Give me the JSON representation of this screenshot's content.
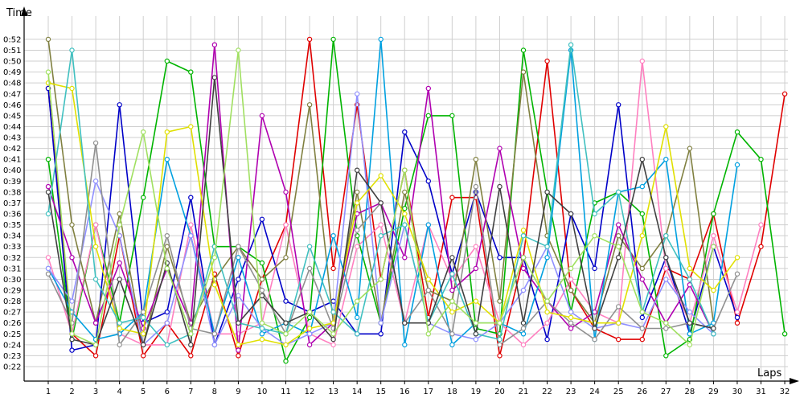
{
  "chart_data": {
    "type": "line",
    "xlabel": "Laps",
    "ylabel": "Time",
    "x": [
      1,
      2,
      3,
      4,
      5,
      6,
      7,
      8,
      9,
      10,
      11,
      12,
      13,
      14,
      15,
      16,
      17,
      18,
      19,
      20,
      21,
      22,
      23,
      24,
      25,
      26,
      27,
      28,
      29,
      30,
      31,
      32
    ],
    "yticks": [
      "0:22",
      "0:23",
      "0:24",
      "0:25",
      "0:26",
      "0:27",
      "0:28",
      "0:29",
      "0:30",
      "0:31",
      "0:32",
      "0:33",
      "0:34",
      "0:35",
      "0:36",
      "0:37",
      "0:38",
      "0:39",
      "0:40",
      "0:41",
      "0:42",
      "0:43",
      "0:44",
      "0:45",
      "0:46",
      "0:47",
      "0:48",
      "0:49",
      "0:50",
      "0:51",
      "0:52"
    ],
    "ylim": [
      21.3,
      53.5
    ],
    "grid": true,
    "legend": "none",
    "series": [
      {
        "color": "#e00000",
        "values": [
          47.5,
          25.0,
          23.0,
          34.0,
          23.0,
          26.0,
          23.0,
          30.5,
          23.0,
          30.0,
          35.0,
          52.0,
          31.0,
          46.0,
          30.0,
          40.0,
          26.5,
          37.5,
          37.5,
          23.0,
          32.0,
          50.0,
          29.0,
          25.5,
          24.5,
          24.5,
          31.0,
          30.0,
          36.0,
          26.0,
          33.0,
          47.0
        ]
      },
      {
        "color": "#0000c8",
        "values": [
          47.5,
          23.5,
          24.0,
          46.0,
          26.0,
          27.0,
          37.5,
          24.0,
          30.0,
          35.5,
          28.0,
          27.0,
          28.0,
          25.0,
          25.0,
          43.5,
          39.0,
          30.5,
          38.0,
          32.0,
          32.0,
          24.5,
          36.0,
          31.0,
          46.0,
          26.5,
          32.0,
          25.0,
          33.0,
          26.5,
          null,
          null
        ]
      },
      {
        "color": "#00b400",
        "values": [
          41.0,
          24.5,
          35.0,
          26.0,
          37.5,
          50.0,
          49.0,
          33.0,
          33.0,
          31.5,
          22.5,
          26.5,
          52.0,
          34.0,
          26.0,
          36.5,
          45.0,
          45.0,
          25.5,
          25.0,
          51.0,
          38.0,
          27.0,
          37.0,
          38.0,
          36.0,
          23.0,
          24.5,
          36.0,
          43.5,
          41.0,
          25.0
        ]
      },
      {
        "color": "#ff80c0",
        "values": [
          32.0,
          25.0,
          35.0,
          25.0,
          24.0,
          24.0,
          35.0,
          25.0,
          25.0,
          26.0,
          35.0,
          25.0,
          24.0,
          33.0,
          35.0,
          26.0,
          35.0,
          30.0,
          33.0,
          26.0,
          24.0,
          26.0,
          30.0,
          27.0,
          26.0,
          50.0,
          31.0,
          26.0,
          34.0,
          27.0,
          35.0,
          null
        ]
      },
      {
        "color": "#808040",
        "values": [
          52.0,
          35.0,
          26.0,
          36.0,
          24.0,
          33.0,
          26.0,
          30.0,
          33.0,
          30.0,
          32.0,
          46.0,
          26.0,
          38.0,
          26.0,
          38.0,
          29.0,
          28.0,
          41.0,
          28.0,
          49.0,
          34.0,
          29.0,
          26.0,
          34.0,
          31.0,
          34.0,
          42.0,
          26.0,
          null,
          null,
          null
        ]
      },
      {
        "color": "#b000b0",
        "values": [
          38.5,
          32.0,
          26.0,
          31.5,
          25.5,
          31.0,
          26.0,
          51.5,
          23.5,
          45.0,
          38.0,
          24.0,
          26.0,
          36.0,
          37.0,
          32.0,
          47.5,
          29.0,
          31.0,
          42.0,
          31.0,
          28.0,
          25.5,
          27.0,
          35.0,
          30.0,
          26.0,
          29.5,
          25.0,
          null,
          null,
          null
        ]
      },
      {
        "color": "#00a0e0",
        "values": [
          31.0,
          27.0,
          24.5,
          25.0,
          27.0,
          41.0,
          34.0,
          25.0,
          32.0,
          25.0,
          26.0,
          25.0,
          34.0,
          26.5,
          52.0,
          24.0,
          35.0,
          24.0,
          26.0,
          26.0,
          25.0,
          32.0,
          51.0,
          24.5,
          38.0,
          38.5,
          41.0,
          25.0,
          26.0,
          40.5,
          null,
          null
        ]
      },
      {
        "color": "#9090ff",
        "values": [
          31.0,
          28.0,
          39.0,
          34.0,
          24.0,
          26.0,
          34.0,
          24.0,
          28.5,
          25.5,
          24.0,
          25.0,
          26.0,
          47.0,
          26.0,
          35.0,
          26.0,
          25.0,
          24.5,
          26.0,
          29.0,
          33.0,
          27.0,
          25.5,
          26.0,
          25.5,
          30.0,
          27.0,
          25.0,
          null,
          null,
          null
        ]
      },
      {
        "color": "#909090",
        "values": [
          30.5,
          26.0,
          42.5,
          24.0,
          27.0,
          34.0,
          25.5,
          25.0,
          33.0,
          29.0,
          25.0,
          31.0,
          25.5,
          34.5,
          37.0,
          26.0,
          29.0,
          25.0,
          38.5,
          24.0,
          25.5,
          28.0,
          26.0,
          24.5,
          27.5,
          25.5,
          25.5,
          26.0,
          25.5,
          30.5,
          null,
          null
        ]
      },
      {
        "color": "#e0e000",
        "values": [
          48.0,
          47.5,
          33.0,
          25.5,
          25.0,
          43.5,
          44.0,
          29.5,
          24.0,
          24.5,
          24.0,
          25.5,
          26.0,
          37.0,
          39.5,
          36.0,
          30.0,
          27.0,
          28.0,
          26.0,
          34.5,
          27.0,
          26.5,
          26.0,
          26.0,
          34.0,
          44.0,
          31.0,
          29.0,
          32.0,
          null,
          null
        ]
      },
      {
        "color": "#40c0c0",
        "values": [
          36.0,
          51.0,
          30.0,
          26.0,
          26.5,
          24.0,
          25.0,
          33.0,
          26.0,
          25.5,
          25.0,
          33.0,
          27.0,
          25.0,
          34.0,
          35.0,
          26.0,
          30.5,
          25.0,
          24.5,
          34.0,
          33.0,
          51.5,
          36.0,
          38.0,
          27.0,
          34.0,
          30.0,
          25.0,
          null,
          null,
          null
        ]
      },
      {
        "color": "#404040",
        "values": [
          38.0,
          24.5,
          24.0,
          30.0,
          24.0,
          31.5,
          24.0,
          48.5,
          26.0,
          28.5,
          26.0,
          27.0,
          24.5,
          40.0,
          37.0,
          26.0,
          26.0,
          32.0,
          25.0,
          38.5,
          26.0,
          38.0,
          36.0,
          25.5,
          32.0,
          41.0,
          32.0,
          26.0,
          25.5,
          null,
          null,
          null
        ]
      },
      {
        "color": "#a0e060",
        "values": [
          49.0,
          25.0,
          24.0,
          35.0,
          43.5,
          31.0,
          25.0,
          32.0,
          51.0,
          26.0,
          25.0,
          27.0,
          25.0,
          28.0,
          30.0,
          40.0,
          25.0,
          28.0,
          26.0,
          26.0,
          32.0,
          28.0,
          31.0,
          34.0,
          33.0,
          27.0,
          26.0,
          24.0,
          33.0,
          null,
          null,
          null
        ]
      }
    ]
  }
}
